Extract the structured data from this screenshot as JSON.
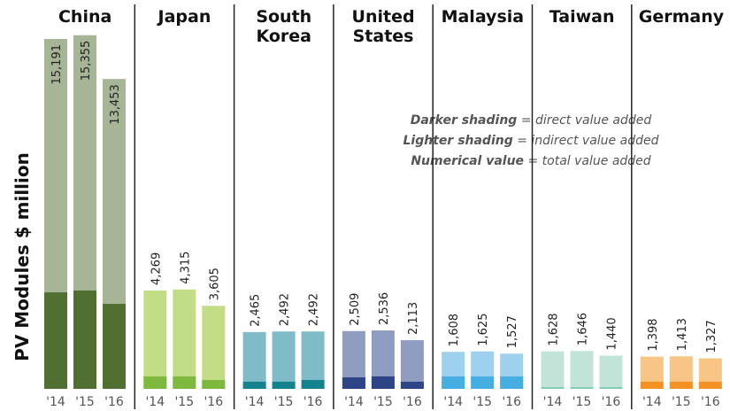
{
  "chart_data": {
    "type": "bar",
    "stacked": true,
    "ylabel": "PV Modules $ million",
    "years": [
      "'14",
      "'15",
      "'16"
    ],
    "legend": [
      {
        "bold": "Darker shading",
        "rest": " = direct value added"
      },
      {
        "bold": "Lighter shading",
        "rest": " = indirect value added"
      },
      {
        "bold": "Numerical value",
        "rest": " = total value added"
      }
    ],
    "groups": [
      {
        "name": [
          "China"
        ],
        "total": [
          15191,
          15355,
          13453
        ],
        "direct": [
          4190,
          4270,
          3690
        ],
        "light": "#a6b595",
        "dark": "#506f30",
        "labels": [
          "15,191",
          "15,355",
          "13,453"
        ],
        "label_inside": true
      },
      {
        "name": [
          "Japan"
        ],
        "total": [
          4269,
          4315,
          3605
        ],
        "direct": [
          540,
          540,
          385
        ],
        "light": "#c3dc86",
        "dark": "#7cb93d",
        "labels": [
          "4,269",
          "4,315",
          "3,605"
        ]
      },
      {
        "name": [
          "South",
          "Korea"
        ],
        "total": [
          2465,
          2492,
          2492
        ],
        "direct": [
          310,
          310,
          385
        ],
        "light": "#80bcc7",
        "dark": "#12838f",
        "labels": [
          "2,465",
          "2,492",
          "2,492"
        ]
      },
      {
        "name": [
          "United",
          "States"
        ],
        "total": [
          2509,
          2536,
          2113
        ],
        "direct": [
          500,
          540,
          310
        ],
        "light": "#8f9dc0",
        "dark": "#2d4486",
        "labels": [
          "2,509",
          "2,536",
          "2,113"
        ]
      },
      {
        "name": [
          "Malaysia"
        ],
        "total": [
          1608,
          1625,
          1527
        ],
        "direct": [
          540,
          540,
          540
        ],
        "light": "#9ed1ee",
        "dark": "#46aee0",
        "labels": [
          "1,608",
          "1,625",
          "1,527"
        ]
      },
      {
        "name": [
          "Taiwan"
        ],
        "total": [
          1628,
          1646,
          1440
        ],
        "direct": [
          75,
          75,
          75
        ],
        "light": "#c2e4d8",
        "dark": "#7ecdb0",
        "labels": [
          "1,628",
          "1,646",
          "1,440"
        ]
      },
      {
        "name": [
          "Germany"
        ],
        "total": [
          1398,
          1413,
          1327
        ],
        "direct": [
          310,
          310,
          310
        ],
        "light": "#f7c585",
        "dark": "#f39122",
        "labels": [
          "1,398",
          "1,413",
          "1,327"
        ]
      }
    ]
  }
}
